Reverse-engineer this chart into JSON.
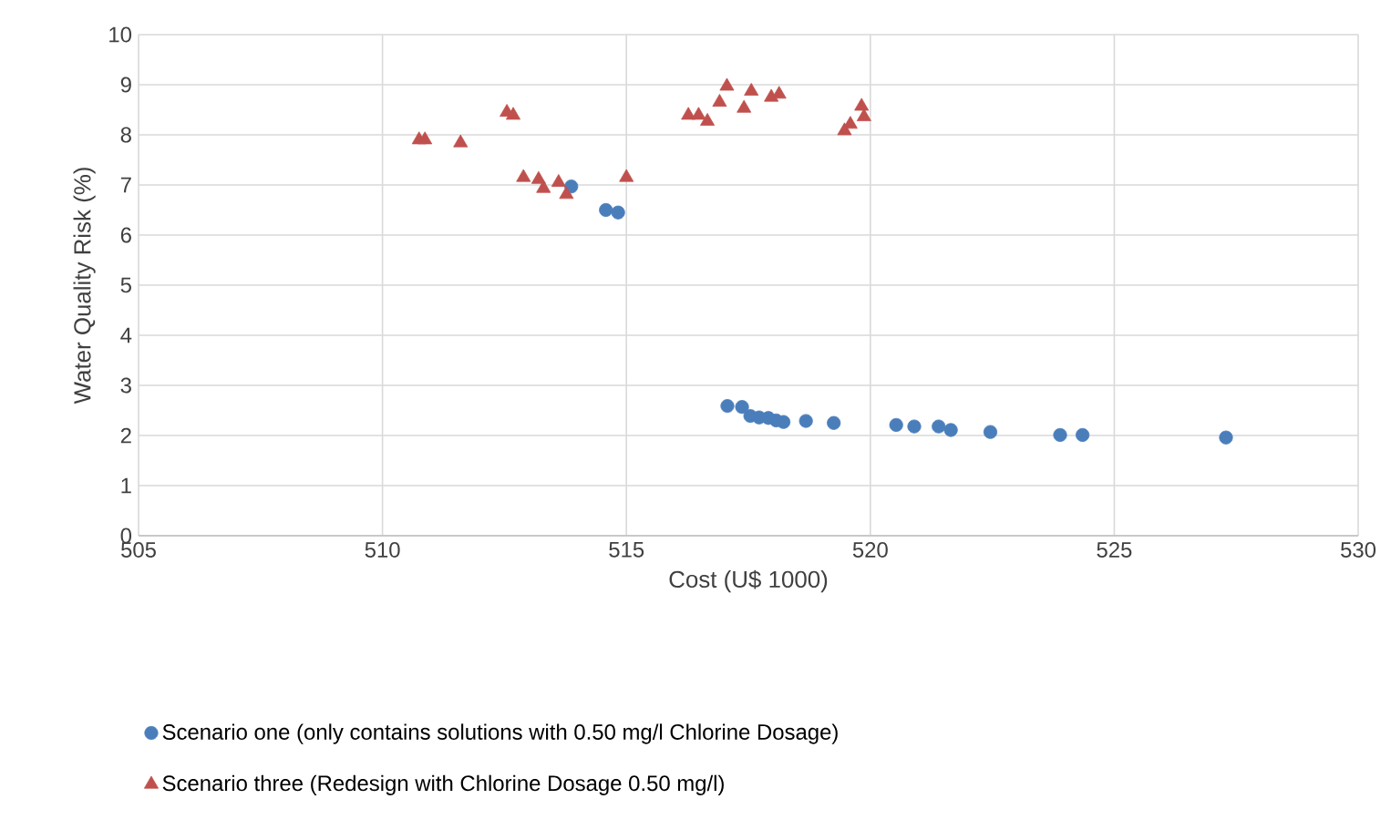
{
  "chart_data": {
    "type": "scatter",
    "xlabel": "Cost (U$ 1000)",
    "ylabel": "Water Quality Risk (%)",
    "xlim": [
      505,
      530
    ],
    "xticks": [
      505,
      510,
      515,
      520,
      525,
      530
    ],
    "ylim": [
      0,
      10
    ],
    "yticks": [
      0,
      1,
      2,
      3,
      4,
      5,
      6,
      7,
      8,
      9,
      10
    ],
    "grid": true,
    "legend": "bottom",
    "series": [
      {
        "name": "Scenario one (only contains solutions with 0.50 mg/l Chlorine Dosage)",
        "color": "#4a7ebb",
        "marker": "circle",
        "x": [
          513.87,
          514.58,
          514.83,
          517.07,
          517.37,
          517.54,
          517.72,
          517.91,
          518.07,
          518.22,
          518.68,
          519.25,
          520.53,
          520.9,
          521.4,
          521.65,
          522.46,
          523.89,
          524.35,
          527.29
        ],
        "values": [
          6.97,
          6.5,
          6.45,
          2.59,
          2.57,
          2.39,
          2.36,
          2.35,
          2.3,
          2.27,
          2.29,
          2.25,
          2.21,
          2.18,
          2.18,
          2.11,
          2.07,
          2.01,
          2.01,
          1.96
        ]
      },
      {
        "name": "Scenario three (Redesign with Chlorine Dosage 0.50 mg/l)",
        "color": "#c0504d",
        "marker": "triangle",
        "x": [
          510.75,
          510.87,
          511.6,
          512.55,
          512.68,
          512.89,
          513.2,
          513.3,
          513.61,
          513.77,
          515.0,
          516.27,
          516.48,
          516.66,
          516.91,
          517.06,
          517.41,
          517.56,
          517.97,
          518.13,
          519.47,
          519.59,
          519.82,
          519.87
        ],
        "values": [
          7.9,
          7.9,
          7.84,
          8.45,
          8.39,
          7.15,
          7.11,
          6.93,
          7.05,
          6.81,
          7.15,
          8.39,
          8.39,
          8.27,
          8.65,
          8.97,
          8.53,
          8.87,
          8.75,
          8.81,
          8.08,
          8.21,
          8.57,
          8.36
        ]
      }
    ]
  }
}
